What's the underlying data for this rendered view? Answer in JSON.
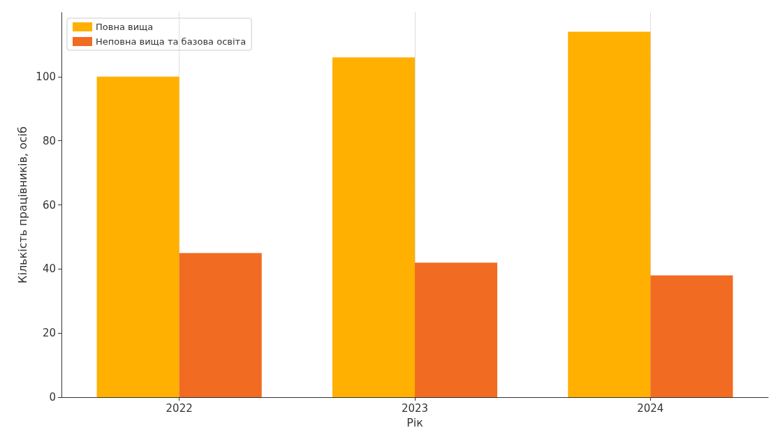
{
  "chart_data": {
    "type": "bar",
    "xlabel": "Рік",
    "ylabel": "Кількість працівників, осіб",
    "categories": [
      "2022",
      "2023",
      "2024"
    ],
    "series": [
      {
        "name": "Повна вища",
        "color": "#ffb000",
        "values": [
          100,
          106,
          114
        ]
      },
      {
        "name": "Неповна вища та базова освіта",
        "color": "#f26b22",
        "values": [
          45,
          42,
          38
        ]
      }
    ],
    "ylim": [
      0,
      120
    ],
    "yticks": [
      0,
      20,
      40,
      60,
      80,
      100
    ],
    "grid": "x",
    "legend": "top left"
  }
}
